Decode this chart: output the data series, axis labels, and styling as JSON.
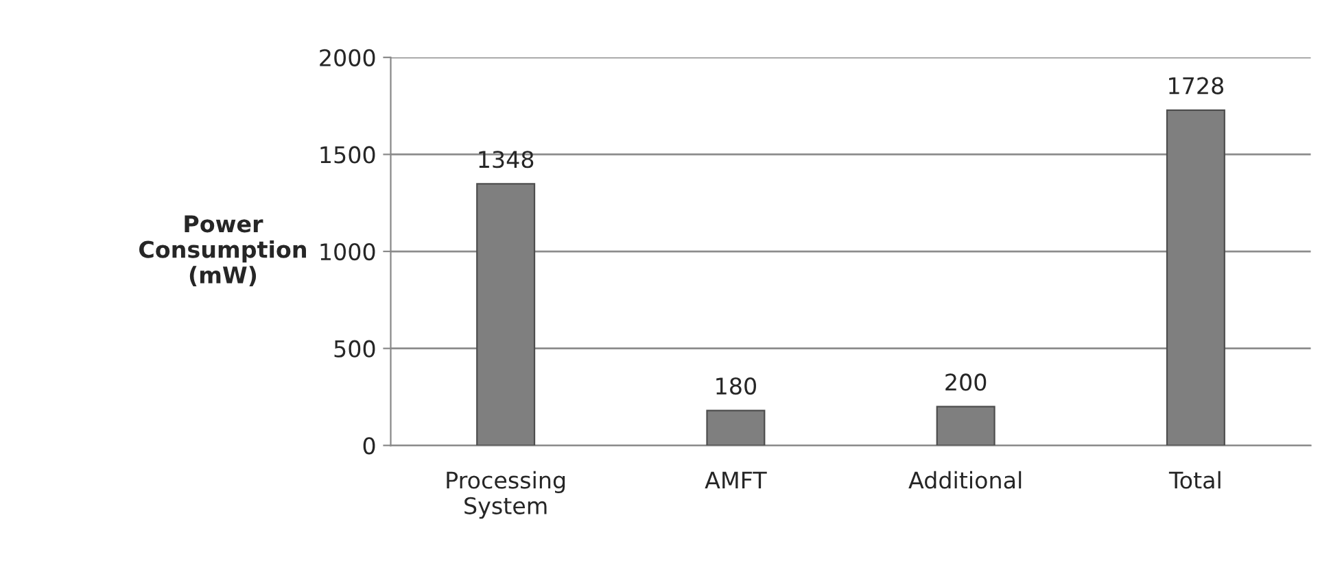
{
  "chart_data": {
    "type": "bar",
    "ylabel": "Power Consumption (mW)",
    "categories": [
      "Processing System",
      "AMFT",
      "Additional",
      "Total"
    ],
    "values": [
      1348,
      180,
      200,
      1728
    ],
    "color": "#7f7f7f",
    "ylim": [
      0,
      2000
    ],
    "yticks": [
      0,
      500,
      1000,
      1500,
      2000
    ],
    "grid": "y",
    "data_labels": true
  }
}
